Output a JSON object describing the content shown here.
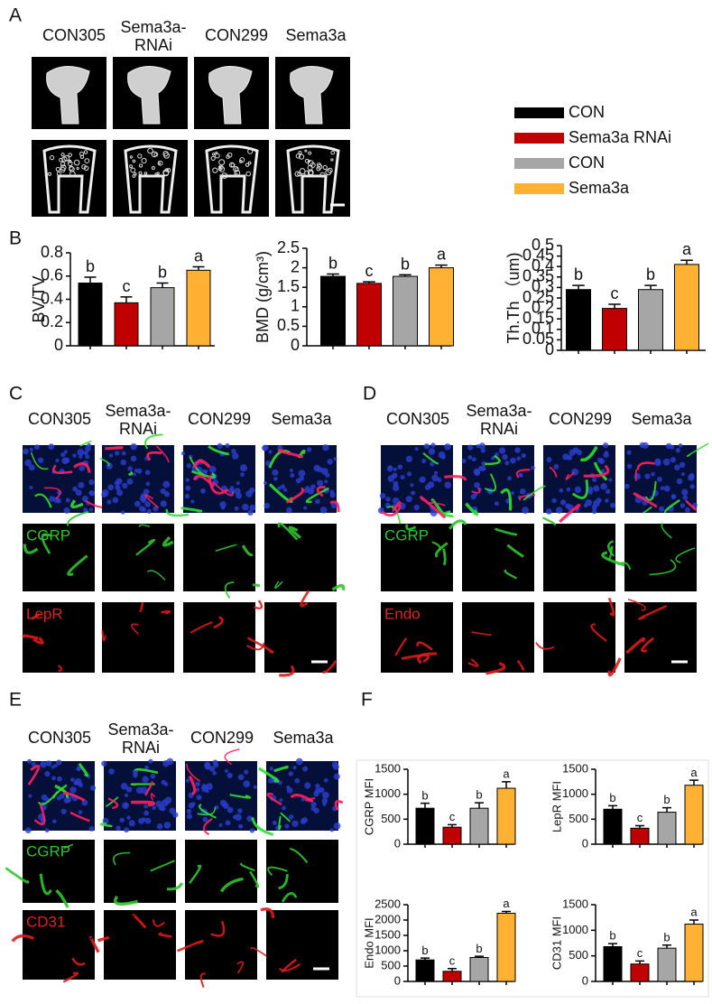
{
  "panels": {
    "A": {
      "letter": "A",
      "columns": [
        [
          "CON305"
        ],
        [
          "Sema3a-",
          "RNAi"
        ],
        [
          "CON299"
        ],
        [
          "Sema3a"
        ]
      ]
    },
    "B": {
      "letter": "B"
    },
    "C": {
      "letter": "C",
      "columns": [
        [
          "CON305"
        ],
        [
          "Sema3a-",
          "RNAi"
        ],
        [
          "CON299"
        ],
        [
          "Sema3a"
        ]
      ],
      "row_labels": [
        "CGRP",
        "LepR"
      ]
    },
    "D": {
      "letter": "D",
      "columns": [
        [
          "CON305"
        ],
        [
          "Sema3a-",
          "RNAi"
        ],
        [
          "CON299"
        ],
        [
          "Sema3a"
        ]
      ],
      "row_labels": [
        "CGRP",
        "Endo"
      ]
    },
    "E": {
      "letter": "E",
      "columns": [
        [
          "CON305"
        ],
        [
          "Sema3a-",
          "RNAi"
        ],
        [
          "CON299"
        ],
        [
          "Sema3a"
        ]
      ],
      "row_labels": [
        "CGRP",
        "CD31"
      ]
    },
    "F": {
      "letter": "F"
    }
  },
  "legend": [
    {
      "name": "CON",
      "color": "#000000"
    },
    {
      "name": "Sema3a RNAi",
      "color": "#c00000"
    },
    {
      "name": "CON",
      "color": "#a6a6a6"
    },
    {
      "name": "Sema3a",
      "color": "#ffb133"
    }
  ],
  "chart_data": [
    {
      "type": "bar",
      "ylabel": "BV/TV",
      "categories": [
        null,
        null,
        null,
        null
      ],
      "values": [
        0.54,
        0.37,
        0.5,
        0.65
      ],
      "errors": [
        0.05,
        0.05,
        0.04,
        0.03
      ],
      "annotations": [
        "b",
        "c",
        "b",
        "a"
      ],
      "colors": [
        "#000000",
        "#c00000",
        "#a6a6a6",
        "#ffb133"
      ],
      "ylim": [
        0,
        0.8
      ],
      "yticks": [
        0,
        0.2,
        0.4,
        0.6,
        0.8
      ]
    },
    {
      "type": "bar",
      "ylabel": "BMD (g/cm³)",
      "categories": [
        null,
        null,
        null,
        null
      ],
      "values": [
        1.78,
        1.6,
        1.78,
        2.0
      ],
      "errors": [
        0.06,
        0.04,
        0.04,
        0.07
      ],
      "annotations": [
        "b",
        "c",
        "b",
        "a"
      ],
      "colors": [
        "#000000",
        "#c00000",
        "#a6a6a6",
        "#ffb133"
      ],
      "ylim": [
        0,
        2.5
      ],
      "yticks": [
        0,
        0.5,
        1,
        1.5,
        2,
        2.5
      ]
    },
    {
      "type": "bar",
      "ylabel": "Th.Th （um)",
      "categories": [
        null,
        null,
        null,
        null
      ],
      "values": [
        0.29,
        0.2,
        0.29,
        0.41
      ],
      "errors": [
        0.02,
        0.02,
        0.02,
        0.02
      ],
      "annotations": [
        "b",
        "c",
        "b",
        "a"
      ],
      "colors": [
        "#000000",
        "#c00000",
        "#a6a6a6",
        "#ffb133"
      ],
      "ylim": [
        0,
        0.5
      ],
      "yticks": [
        0,
        0.05,
        0.1,
        0.15,
        0.2,
        0.25,
        0.3,
        0.35,
        0.4,
        0.45,
        0.5
      ]
    },
    {
      "type": "bar",
      "ylabel": "CGRP MFI",
      "categories": [
        null,
        null,
        null,
        null
      ],
      "values": [
        720,
        340,
        720,
        1120
      ],
      "errors": [
        100,
        50,
        110,
        130
      ],
      "annotations": [
        "b",
        "c",
        "b",
        "a"
      ],
      "colors": [
        "#000000",
        "#c00000",
        "#a6a6a6",
        "#ffb133"
      ],
      "ylim": [
        0,
        1500
      ],
      "yticks": [
        0,
        500,
        1000,
        1500
      ]
    },
    {
      "type": "bar",
      "ylabel": "LepR MFI",
      "categories": [
        null,
        null,
        null,
        null
      ],
      "values": [
        700,
        320,
        640,
        1180
      ],
      "errors": [
        70,
        50,
        90,
        100
      ],
      "annotations": [
        "b",
        "c",
        "b",
        "a"
      ],
      "colors": [
        "#000000",
        "#c00000",
        "#a6a6a6",
        "#ffb133"
      ],
      "ylim": [
        0,
        1500
      ],
      "yticks": [
        0,
        500,
        1000,
        1500
      ]
    },
    {
      "type": "bar",
      "ylabel": "Endo MFI",
      "categories": [
        null,
        null,
        null,
        null
      ],
      "values": [
        700,
        330,
        780,
        2220
      ],
      "errors": [
        60,
        90,
        40,
        60
      ],
      "annotations": [
        "b",
        "c",
        "b",
        "a"
      ],
      "colors": [
        "#000000",
        "#c00000",
        "#a6a6a6",
        "#ffb133"
      ],
      "ylim": [
        0,
        2500
      ],
      "yticks": [
        0,
        500,
        1000,
        1500,
        2000,
        2500
      ]
    },
    {
      "type": "bar",
      "ylabel": "CD31 MFI",
      "categories": [
        null,
        null,
        null,
        null
      ],
      "values": [
        680,
        340,
        650,
        1120
      ],
      "errors": [
        60,
        60,
        60,
        80
      ],
      "annotations": [
        "b",
        "c",
        "b",
        "a"
      ],
      "colors": [
        "#000000",
        "#c00000",
        "#a6a6a6",
        "#ffb133"
      ],
      "ylim": [
        0,
        1500
      ],
      "yticks": [
        0,
        500,
        1000,
        1500
      ]
    }
  ]
}
